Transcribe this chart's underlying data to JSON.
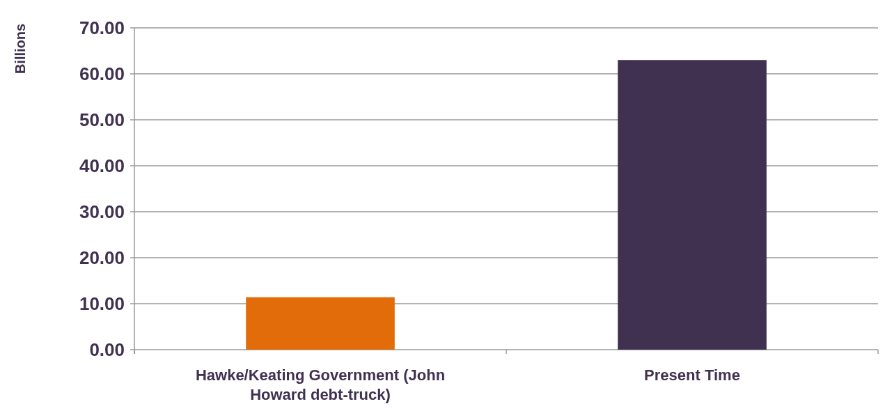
{
  "chart_data": {
    "type": "bar",
    "ylabel": "Billions",
    "categories": [
      "Hawke/Keating Government (John Howard debt-truck)",
      "Present Time"
    ],
    "values": [
      11.4,
      63.0
    ],
    "colors": [
      "#e36c0a",
      "#403151"
    ],
    "ylim": [
      0,
      70
    ],
    "yticks": [
      {
        "value": 0,
        "label": "0.00"
      },
      {
        "value": 10,
        "label": "10.00"
      },
      {
        "value": 20,
        "label": "20.00"
      },
      {
        "value": 30,
        "label": "30.00"
      },
      {
        "value": 40,
        "label": "40.00"
      },
      {
        "value": 50,
        "label": "50.00"
      },
      {
        "value": 60,
        "label": "60.00"
      },
      {
        "value": 70,
        "label": "70.00"
      }
    ],
    "grid": "y"
  }
}
